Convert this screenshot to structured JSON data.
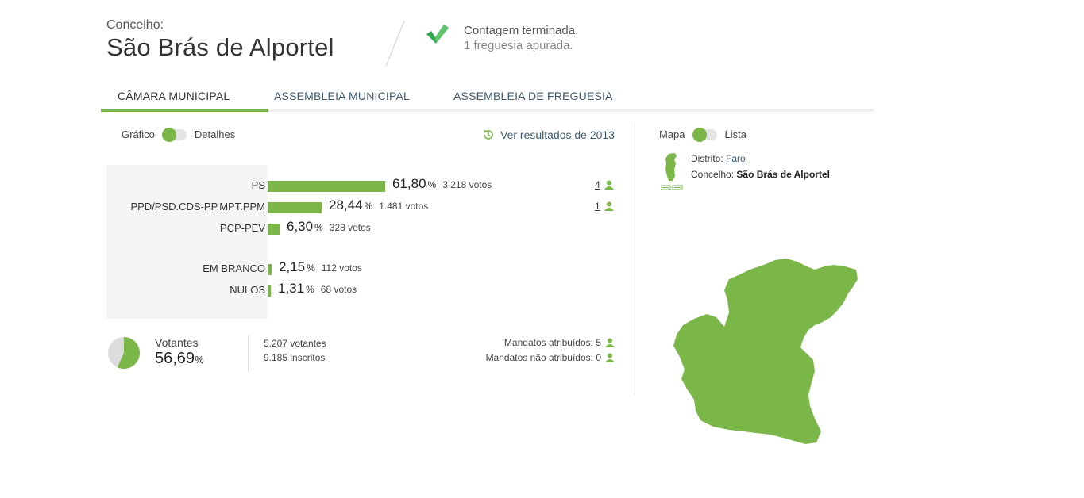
{
  "header": {
    "label": "Concelho:",
    "title": "São Brás de Alportel",
    "status_title": "Contagem terminada.",
    "status_sub": "1 freguesia apurada."
  },
  "tabs": [
    {
      "label": "CÂMARA MUNICIPAL",
      "active": true
    },
    {
      "label": "ASSEMBLEIA MUNICIPAL",
      "active": false
    },
    {
      "label": "ASSEMBLEIA DE FREGUESIA",
      "active": false
    }
  ],
  "view_toggle": {
    "left": "Gráfico",
    "right": "Detalhes"
  },
  "map_toggle": {
    "left": "Mapa",
    "right": "Lista"
  },
  "results_link": "Ver resultados de 2013",
  "accent_color": "#7ab648",
  "parties": [
    {
      "name": "PS",
      "pct": "61,80",
      "pct_value": 61.8,
      "votes": "3.218 votos",
      "seats": "4"
    },
    {
      "name": "PPD/PSD.CDS-PP.MPT.PPM",
      "pct": "28,44",
      "pct_value": 28.44,
      "votes": "1.481 votos",
      "seats": "1"
    },
    {
      "name": "PCP-PEV",
      "pct": "6,30",
      "pct_value": 6.3,
      "votes": "328 votos",
      "seats": ""
    }
  ],
  "other": [
    {
      "name": "EM BRANCO",
      "pct": "2,15",
      "pct_value": 2.15,
      "votes": "112 votos"
    },
    {
      "name": "NULOS",
      "pct": "1,31",
      "pct_value": 1.31,
      "votes": "68 votos"
    }
  ],
  "percent_symbol": "%",
  "turnout": {
    "label": "Votantes",
    "value": "56,69",
    "value_num": 56.69,
    "voters": "5.207 votantes",
    "registered": "9.185 inscritos"
  },
  "mandates": {
    "assigned": "Mandatos atribuídos: 5",
    "unassigned": "Mandatos não atribuídos: 0"
  },
  "location": {
    "district_label": "Distrito:",
    "district": "Faro",
    "municipality_label": "Concelho:",
    "municipality": "São Brás de Alportel"
  },
  "icons": {
    "check": "check-icon",
    "history": "history-icon",
    "person": "person-icon",
    "map": "portugal-map-icon"
  }
}
